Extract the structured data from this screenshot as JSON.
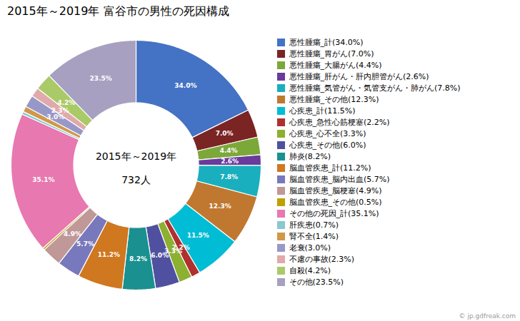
{
  "chart_data": {
    "type": "pie",
    "title": "2015年～2019年 富谷市の男性の死因構成",
    "annotations": [
      "2015年～2019年",
      "732人"
    ],
    "caption": "© jp.gdfreak.com",
    "categories": [
      "悪性腫瘍_計(34.0%)",
      "悪性腫瘍_胃がん(7.0%)",
      "悪性腫瘍_大腸がん(4.4%)",
      "悪性腫瘍_肝がん・肝内胆管がん(2.6%)",
      "悪性腫瘍_気管がん・気管支がん・肺がん(7.8%)",
      "悪性腫瘍_その他(12.3%)",
      "心疾患_計(11.5%)",
      "心疾患_急性心筋梗塞(2.2%)",
      "心疾患_心不全(3.3%)",
      "心疾患_その他(6.0%)",
      "肺炎(8.2%)",
      "脳血管疾患_計(11.2%)",
      "脳血管疾患_脳内出血(5.7%)",
      "脳血管疾患_脳梗塞(4.9%)",
      "脳血管疾患_その他(0.5%)",
      "その他の死因_計(35.1%)",
      "肝疾患(0.7%)",
      "腎不全(1.4%)",
      "老衰(3.0%)",
      "不慮の事故(2.3%)",
      "自殺(4.2%)",
      "その他(23.5%)"
    ],
    "values": [
      34.0,
      7.0,
      4.4,
      2.6,
      7.8,
      12.3,
      11.5,
      2.2,
      3.3,
      6.0,
      8.2,
      11.2,
      5.7,
      4.9,
      0.5,
      35.1,
      0.7,
      1.4,
      3.0,
      2.3,
      4.2,
      23.5
    ],
    "value_labels": [
      "34.0%",
      "7.0%",
      "4.4%",
      "2.6%",
      "7.8%",
      "12.3%",
      "11.5%",
      "2.2%",
      "3.3%",
      "6.0%",
      "8.2%",
      "11.2%",
      "5.7%",
      "4.9%",
      null,
      "35.1%",
      null,
      null,
      "3.0%",
      "2.3%",
      "4.2%",
      "23.5%"
    ],
    "colors": [
      "#4472C4",
      "#7B2424",
      "#7CA83A",
      "#6A3A9C",
      "#1AAFBE",
      "#C07830",
      "#00BCD4",
      "#B03030",
      "#8CB030",
      "#5050A0",
      "#1A9090",
      "#D07820",
      "#7878BC",
      "#C09898",
      "#C0A000",
      "#E878B0",
      "#88C8D0",
      "#D09848",
      "#9898C8",
      "#E0AAAA",
      "#AACA68",
      "#A8A0C0"
    ],
    "data_labels": true,
    "legend": "right"
  }
}
